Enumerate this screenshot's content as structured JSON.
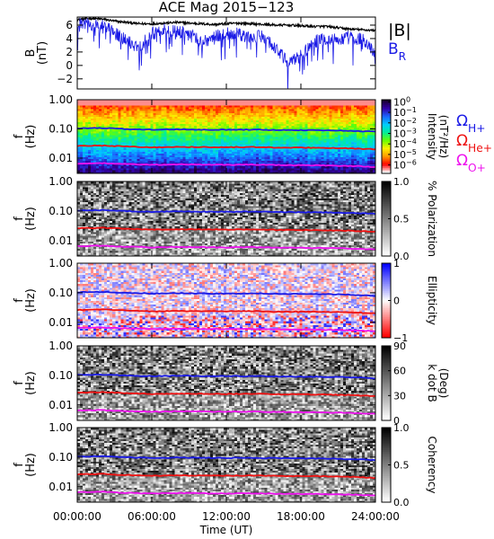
{
  "chart_data": [
    {
      "type": "line",
      "title": "ACE Mag 2015−123",
      "ylabel": "B",
      "yunit": "(nT)",
      "ylim": [
        -3.5,
        7.2
      ],
      "yticks": [
        "6",
        "4",
        "2",
        "0",
        "−2"
      ],
      "ytick_values": [
        6,
        4,
        2,
        0,
        -2
      ],
      "x_range_hours": [
        0,
        24
      ],
      "series": [
        {
          "name": "|B|",
          "color": "#000000",
          "x": [
            0,
            1,
            2,
            3,
            4,
            5,
            6,
            7,
            8,
            9,
            10,
            11,
            12,
            13,
            14,
            15,
            16,
            17,
            18,
            19,
            20,
            21,
            22,
            23,
            24
          ],
          "values": [
            6.8,
            7.0,
            6.9,
            6.6,
            6.4,
            6.2,
            6.2,
            6.3,
            6.4,
            6.3,
            6.2,
            6.1,
            6.2,
            6.3,
            6.2,
            6.1,
            6.0,
            6.0,
            5.9,
            5.8,
            5.8,
            5.6,
            5.4,
            5.3,
            5.2
          ]
        },
        {
          "name": "B",
          "subscript": "R",
          "color": "#1a1ae6",
          "x": [
            0,
            1,
            2,
            3,
            4,
            5,
            6,
            7,
            8,
            9,
            10,
            11,
            12,
            13,
            14,
            15,
            16,
            17,
            18,
            19,
            20,
            21,
            22,
            23,
            24
          ],
          "values": [
            6.0,
            6.3,
            5.8,
            5.0,
            3.6,
            2.8,
            4.8,
            5.2,
            5.0,
            4.6,
            3.5,
            4.2,
            4.8,
            4.6,
            4.0,
            4.4,
            2.5,
            0.2,
            1.5,
            3.5,
            4.0,
            3.8,
            4.2,
            3.8,
            1.8
          ]
        }
      ]
    },
    {
      "type": "heatmap",
      "panel": "intensity",
      "ylabel": "f",
      "yunit": "(Hz)",
      "ylim": [
        0.003,
        1.0
      ],
      "yscale": "log",
      "yticks": [
        "1.00",
        "0.10",
        "0.01"
      ],
      "ytick_values": [
        1.0,
        0.1,
        0.01
      ],
      "colorbar": {
        "label": "Intensity",
        "unit": "(nT²/Hz)",
        "ticks": [
          {
            "base": "10",
            "exp": "0",
            "value": 0
          },
          {
            "base": "10",
            "exp": "−1",
            "value": -1
          },
          {
            "base": "10",
            "exp": "−2",
            "value": -2
          },
          {
            "base": "10",
            "exp": "−3",
            "value": -3
          },
          {
            "base": "10",
            "exp": "−4",
            "value": -4
          },
          {
            "base": "10",
            "exp": "−5",
            "value": -5
          },
          {
            "base": "10",
            "exp": "−6",
            "value": -6
          }
        ],
        "range": [
          -6.8,
          0.2
        ],
        "colors": [
          "#ffffff",
          "#ff0000",
          "#ff9900",
          "#ffee00",
          "#66ff00",
          "#00ee99",
          "#00ccff",
          "#1a66ff",
          "#3300aa",
          "#1a0030"
        ]
      }
    },
    {
      "type": "heatmap",
      "panel": "polarization",
      "ylabel": "f",
      "yunit": "(Hz)",
      "ylim": [
        0.003,
        1.0
      ],
      "yscale": "log",
      "yticks": [
        "1.00",
        "0.10",
        "0.01"
      ],
      "ytick_values": [
        1.0,
        0.1,
        0.01
      ],
      "colorbar": {
        "label": "% Polarization",
        "ticks": [
          {
            "text": "1.0",
            "value": 1.0
          },
          {
            "text": "0.5",
            "value": 0.5
          },
          {
            "text": "0.0",
            "value": 0.0
          }
        ],
        "range": [
          0,
          1
        ],
        "colors": [
          "#000000",
          "#ffffff"
        ]
      }
    },
    {
      "type": "heatmap",
      "panel": "ellipticity",
      "ylabel": "f",
      "yunit": "(Hz)",
      "ylim": [
        0.003,
        1.0
      ],
      "yscale": "log",
      "yticks": [
        "1.00",
        "0.10",
        "0.01"
      ],
      "ytick_values": [
        1.0,
        0.1,
        0.01
      ],
      "colorbar": {
        "label": "Ellipticity",
        "ticks": [
          {
            "text": "1",
            "value": 1
          },
          {
            "text": "0",
            "value": 0
          },
          {
            "text": "−1",
            "value": -1
          }
        ],
        "range": [
          -1,
          1
        ],
        "colors": [
          "#ff0000",
          "#ffffff",
          "#0000ff"
        ]
      }
    },
    {
      "type": "heatmap",
      "panel": "kdotb",
      "ylabel": "f",
      "yunit": "(Hz)",
      "ylim": [
        0.003,
        1.0
      ],
      "yscale": "log",
      "yticks": [
        "1.00",
        "0.10",
        "0.01"
      ],
      "ytick_values": [
        1.0,
        0.1,
        0.01
      ],
      "colorbar": {
        "label": "k dot B",
        "unit": "(Deg)",
        "ticks": [
          {
            "text": "90",
            "value": 90
          },
          {
            "text": "60",
            "value": 60
          },
          {
            "text": "30",
            "value": 30
          },
          {
            "text": "0",
            "value": 0
          }
        ],
        "range": [
          0,
          90
        ],
        "colors": [
          "#000000",
          "#ffffff"
        ]
      }
    },
    {
      "type": "heatmap",
      "panel": "coherency",
      "ylabel": "f",
      "yunit": "(Hz)",
      "ylim": [
        0.003,
        1.0
      ],
      "yscale": "log",
      "yticks": [
        "1.00",
        "0.10",
        "0.01"
      ],
      "ytick_values": [
        1.0,
        0.1,
        0.01
      ],
      "colorbar": {
        "label": "Coherency",
        "ticks": [
          {
            "text": "1.0",
            "value": 1.0
          },
          {
            "text": "0.5",
            "value": 0.5
          },
          {
            "text": "0.0",
            "value": 0.0
          }
        ],
        "range": [
          0,
          1
        ],
        "colors": [
          "#000000",
          "#ffffff"
        ]
      }
    }
  ],
  "gyrofrequency_legend": [
    {
      "symbol": "Ω",
      "subscript": "H+",
      "color": "#1a1ae6"
    },
    {
      "symbol": "Ω",
      "subscript": "He+",
      "color": "#ee1111"
    },
    {
      "symbol": "Ω",
      "subscript": "O+",
      "color": "#ee11ee"
    }
  ],
  "gyrofrequency_lines": [
    {
      "ion": "H+",
      "color": "#1a1ae6",
      "x": [
        0,
        2,
        4,
        6,
        8,
        10,
        12,
        14,
        16,
        18,
        20,
        22,
        24
      ],
      "values": [
        0.104,
        0.107,
        0.099,
        0.094,
        0.097,
        0.095,
        0.094,
        0.095,
        0.092,
        0.091,
        0.09,
        0.086,
        0.08
      ]
    },
    {
      "ion": "He+",
      "color": "#ee1111",
      "x": [
        0,
        2,
        4,
        6,
        8,
        10,
        12,
        14,
        16,
        18,
        20,
        22,
        24
      ],
      "values": [
        0.026,
        0.027,
        0.025,
        0.0235,
        0.024,
        0.024,
        0.0235,
        0.024,
        0.023,
        0.0228,
        0.0225,
        0.0215,
        0.02
      ]
    },
    {
      "ion": "O+",
      "color": "#ee11ee",
      "x": [
        0,
        2,
        4,
        6,
        8,
        10,
        12,
        14,
        16,
        18,
        20,
        22,
        24
      ],
      "values": [
        0.0065,
        0.0067,
        0.0062,
        0.0059,
        0.0061,
        0.006,
        0.0059,
        0.006,
        0.0058,
        0.0057,
        0.0056,
        0.0054,
        0.005
      ]
    }
  ],
  "xaxis": {
    "ticks": [
      "00:00:00",
      "06:00:00",
      "12:00:00",
      "18:00:00",
      "24:00:00"
    ],
    "tick_hours": [
      0,
      6,
      12,
      18,
      24
    ],
    "label": "Time (UT)"
  }
}
